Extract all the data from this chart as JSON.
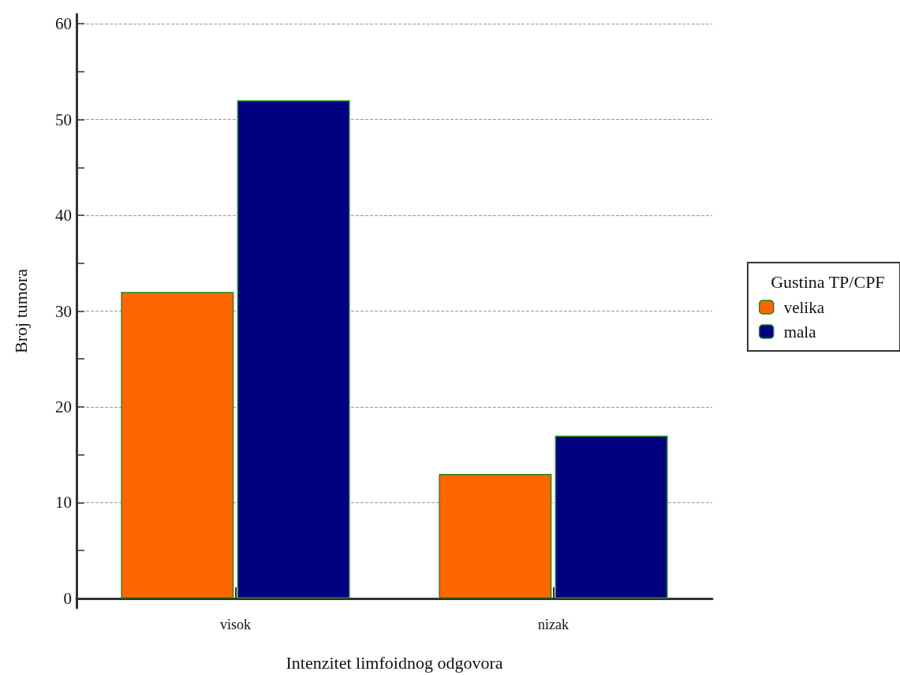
{
  "chart_data": {
    "type": "bar",
    "xlabel": "Intenzitet limfoidnog odgovora",
    "ylabel": "Broj tumora",
    "legend_title": "Gustina TP/CPF",
    "categories": [
      "visok",
      "nizak"
    ],
    "series": [
      {
        "name": "velika",
        "color": "#ff6600",
        "values": [
          32,
          13
        ]
      },
      {
        "name": "mala",
        "color": "#000080",
        "values": [
          52,
          17
        ]
      }
    ],
    "ylim": [
      -1,
      61
    ],
    "yticks": [
      0,
      {
        "value": 5,
        "label": null
      },
      10,
      {
        "value": 15,
        "label": null
      },
      20,
      {
        "value": 25,
        "label": null
      },
      30,
      {
        "value": 35,
        "label": null
      },
      40,
      {
        "value": 45,
        "label": null
      },
      50,
      {
        "value": 55,
        "label": null
      },
      60
    ],
    "grid": "y",
    "legend": "right"
  }
}
